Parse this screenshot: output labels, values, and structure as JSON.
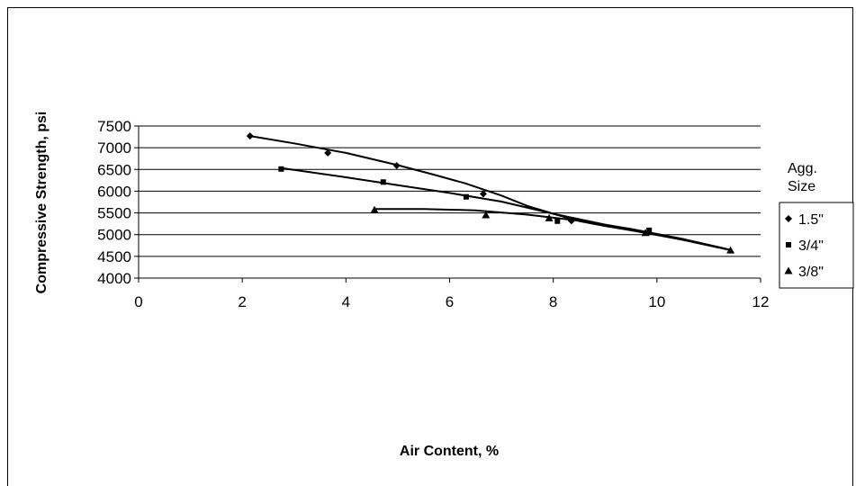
{
  "chart_data": {
    "type": "scatter",
    "title": "",
    "xlabel": "Air Content, %",
    "ylabel": "Compressive Strength, psi",
    "xlim": [
      0,
      12
    ],
    "ylim": [
      4000,
      7500
    ],
    "xticks": [
      "0",
      "2",
      "4",
      "6",
      "8",
      "10",
      "12"
    ],
    "yticks": [
      "4000",
      "4500",
      "5000",
      "5500",
      "6000",
      "6500",
      "7000",
      "7500"
    ],
    "grid": "horizontal",
    "legend": {
      "title": "Agg. Size",
      "placement": "right"
    },
    "trendlines": true,
    "series": [
      {
        "name": "1.5\"",
        "marker": "diamond",
        "x": [
          2.15,
          3.65,
          4.98,
          6.65,
          8.35
        ],
        "y": [
          7270,
          6880,
          6590,
          5940,
          5320
        ],
        "trend": [
          [
            2.15,
            7270
          ],
          [
            3.0,
            7100
          ],
          [
            4.0,
            6880
          ],
          [
            5.0,
            6600
          ],
          [
            5.7,
            6380
          ],
          [
            6.3,
            6180
          ],
          [
            7.0,
            5900
          ],
          [
            7.5,
            5660
          ],
          [
            8.0,
            5480
          ],
          [
            8.5,
            5310
          ],
          [
            9.0,
            5200
          ],
          [
            9.5,
            5100
          ],
          [
            10.0,
            4990
          ],
          [
            10.5,
            4880
          ],
          [
            11.0,
            4750
          ],
          [
            11.4,
            4650
          ]
        ]
      },
      {
        "name": "3/4\"",
        "marker": "square",
        "x": [
          2.75,
          4.72,
          6.32,
          8.08,
          9.85
        ],
        "y": [
          6510,
          6210,
          5870,
          5310,
          5100
        ],
        "trend": [
          [
            2.75,
            6530
          ],
          [
            4.0,
            6320
          ],
          [
            5.0,
            6140
          ],
          [
            6.0,
            5960
          ],
          [
            7.0,
            5760
          ],
          [
            8.0,
            5480
          ],
          [
            9.0,
            5230
          ],
          [
            9.8,
            5060
          ]
        ]
      },
      {
        "name": "3/8\"",
        "marker": "triangle",
        "x": [
          4.55,
          6.7,
          7.92,
          9.78,
          11.42
        ],
        "y": [
          5570,
          5450,
          5380,
          5040,
          4640
        ],
        "trend": [
          [
            4.55,
            5590
          ],
          [
            5.5,
            5590
          ],
          [
            6.5,
            5560
          ],
          [
            7.5,
            5460
          ],
          [
            8.5,
            5320
          ],
          [
            9.5,
            5130
          ],
          [
            10.5,
            4900
          ],
          [
            11.42,
            4650
          ]
        ]
      }
    ]
  }
}
